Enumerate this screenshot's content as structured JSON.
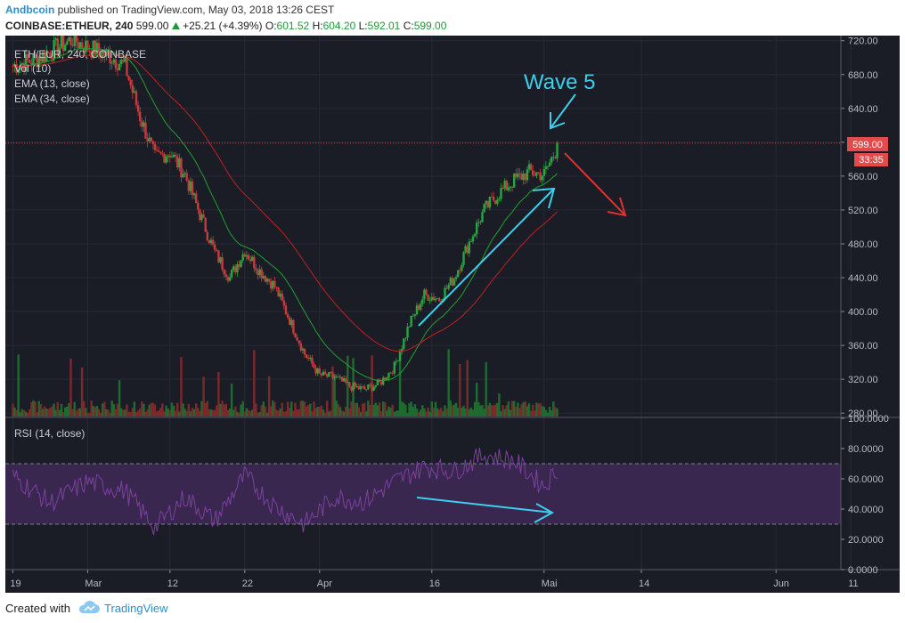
{
  "header": {
    "author": "Andbcoin",
    "published_text": "published on TradingView.com, May 03, 2018 13:26 CEST",
    "symbol": "COINBASE:ETHEUR, 240",
    "last": "599.00",
    "change_icon": "triangle-up-icon",
    "change": "+25.21 (+4.39%)",
    "o_label": "O:",
    "o_value": "601.52",
    "h_label": "H:",
    "h_value": "604.20",
    "l_label": "L:",
    "l_value": "592.01",
    "c_label": "C:",
    "c_value": "599.00"
  },
  "legend": {
    "title": "ETH/EUR, 240, COINBASE",
    "vol": "Vol (10)",
    "ema1": "EMA (13, close)",
    "ema2": "EMA (34, close)",
    "rsi": "RSI (14, close)"
  },
  "price_tag": {
    "value": "599.00",
    "countdown": "33:35"
  },
  "annotations": {
    "wave": "Wave 5"
  },
  "footer": {
    "created": "Created with",
    "brand": "TradingView",
    "brand_icon": "tradingview-cloud-icon"
  },
  "colors": {
    "up": "#26a641",
    "down": "#c93a3a",
    "ema13": "#20a030",
    "ema34": "#c02020",
    "rsi": "#7d3fa3",
    "cyan": "#3ad0ec",
    "red_arrow": "#e03030",
    "tag": "#e24b4b"
  },
  "chart_data": [
    {
      "type": "candlestick",
      "title": "ETH/EUR, 240, COINBASE",
      "ylim": [
        276,
        726
      ],
      "x_ticks": [
        "19",
        "Mar",
        "12",
        "22",
        "Apr",
        "16",
        "Mai",
        "14",
        "Jun",
        "11"
      ],
      "y_ticks": [
        "720.00",
        "680.00",
        "640.00",
        "600.00",
        "560.00",
        "520.00",
        "480.00",
        "440.00",
        "400.00",
        "360.00",
        "320.00",
        "280.00"
      ],
      "price_path": [
        [
          "2018-02-19",
          690
        ],
        [
          "2018-02-22",
          698
        ],
        [
          "2018-02-25",
          712
        ],
        [
          "2018-02-27",
          722
        ],
        [
          "2018-03-01",
          712
        ],
        [
          "2018-03-04",
          702
        ],
        [
          "2018-03-06",
          690
        ],
        [
          "2018-03-08",
          630
        ],
        [
          "2018-03-10",
          582
        ],
        [
          "2018-03-12",
          588
        ],
        [
          "2018-03-14",
          562
        ],
        [
          "2018-03-16",
          515
        ],
        [
          "2018-03-18",
          470
        ],
        [
          "2018-03-20",
          440
        ],
        [
          "2018-03-22",
          472
        ],
        [
          "2018-03-24",
          448
        ],
        [
          "2018-03-26",
          430
        ],
        [
          "2018-03-28",
          390
        ],
        [
          "2018-03-30",
          350
        ],
        [
          "2018-04-01",
          325
        ],
        [
          "2018-04-03",
          322
        ],
        [
          "2018-04-05",
          312
        ],
        [
          "2018-04-07",
          308
        ],
        [
          "2018-04-09",
          315
        ],
        [
          "2018-04-11",
          335
        ],
        [
          "2018-04-13",
          385
        ],
        [
          "2018-04-15",
          420
        ],
        [
          "2018-04-17",
          415
        ],
        [
          "2018-04-19",
          440
        ],
        [
          "2018-04-21",
          482
        ],
        [
          "2018-04-23",
          520
        ],
        [
          "2018-04-25",
          540
        ],
        [
          "2018-04-27",
          555
        ],
        [
          "2018-04-29",
          565
        ],
        [
          "2018-05-01",
          562
        ],
        [
          "2018-05-02",
          580
        ],
        [
          "2018-05-03",
          599
        ]
      ],
      "series": [
        {
          "name": "EMA (13, close)"
        },
        {
          "name": "EMA (34, close)"
        },
        {
          "name": "Vol (10)"
        }
      ],
      "last_price": 599.0
    },
    {
      "type": "line",
      "title": "RSI (14, close)",
      "ylim": [
        0,
        100
      ],
      "y_ticks": [
        "100.0000",
        "80.0000",
        "60.0000",
        "40.0000",
        "20.0000",
        "0.0000"
      ],
      "bands": [
        30,
        70
      ],
      "x": [
        "2018-02-19",
        "2018-02-24",
        "2018-03-01",
        "2018-03-06",
        "2018-03-10",
        "2018-03-14",
        "2018-03-18",
        "2018-03-22",
        "2018-03-26",
        "2018-03-30",
        "2018-04-03",
        "2018-04-07",
        "2018-04-11",
        "2018-04-15",
        "2018-04-19",
        "2018-04-23",
        "2018-04-27",
        "2018-05-01",
        "2018-05-03"
      ],
      "values": [
        62,
        44,
        58,
        52,
        28,
        48,
        32,
        62,
        42,
        30,
        48,
        45,
        58,
        68,
        65,
        76,
        72,
        55,
        68
      ]
    }
  ]
}
